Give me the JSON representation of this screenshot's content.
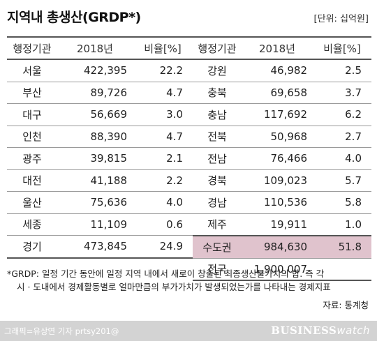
{
  "title": "지역내 총생산(GRDP*)",
  "unit": "[단위: 십억원]",
  "headers": [
    "행정기관",
    "2018년",
    "비율[%]"
  ],
  "left_rows": [
    {
      "region": "서울",
      "value": "422,395",
      "rate": "22.2"
    },
    {
      "region": "부산",
      "value": "89,726",
      "rate": "4.7"
    },
    {
      "region": "대구",
      "value": "56,669",
      "rate": "3.0"
    },
    {
      "region": "인천",
      "value": "88,390",
      "rate": "4.7"
    },
    {
      "region": "광주",
      "value": "39,815",
      "rate": "2.1"
    },
    {
      "region": "대전",
      "value": "41,188",
      "rate": "2.2"
    },
    {
      "region": "울산",
      "value": "75,636",
      "rate": "4.0"
    },
    {
      "region": "세종",
      "value": "11,109",
      "rate": "0.6"
    },
    {
      "region": "경기",
      "value": "473,845",
      "rate": "24.9"
    }
  ],
  "right_rows": [
    {
      "region": "강원",
      "value": "46,982",
      "rate": "2.5"
    },
    {
      "region": "충북",
      "value": "69,658",
      "rate": "3.7"
    },
    {
      "region": "충남",
      "value": "117,692",
      "rate": "6.2"
    },
    {
      "region": "전북",
      "value": "50,968",
      "rate": "2.7"
    },
    {
      "region": "전남",
      "value": "76,466",
      "rate": "4.0"
    },
    {
      "region": "경북",
      "value": "109,023",
      "rate": "5.7"
    },
    {
      "region": "경남",
      "value": "110,536",
      "rate": "5.8"
    },
    {
      "region": "제주",
      "value": "19,911",
      "rate": "1.0"
    },
    {
      "region": "수도권",
      "value": "984,630",
      "rate": "51.8"
    }
  ],
  "total": {
    "region": "전국",
    "value": "1,900,007"
  },
  "highlight_color": "#e0c3cd",
  "note_line1": "*GRDP: 일정 기간 동안에 일정 지역 내에서 새로이 창출된 최종생산물가치의 합. 즉 각",
  "note_line2": "시 · 도내에서 경제활동별로 얼마만큼의 부가가치가 발생되었는가를 나타내는 경제지표",
  "source": "자료: 통계청",
  "credit": "그래픽=유상연 기자 prtsy201@",
  "logo_main": "BUSINESS",
  "logo_sub": "watch"
}
